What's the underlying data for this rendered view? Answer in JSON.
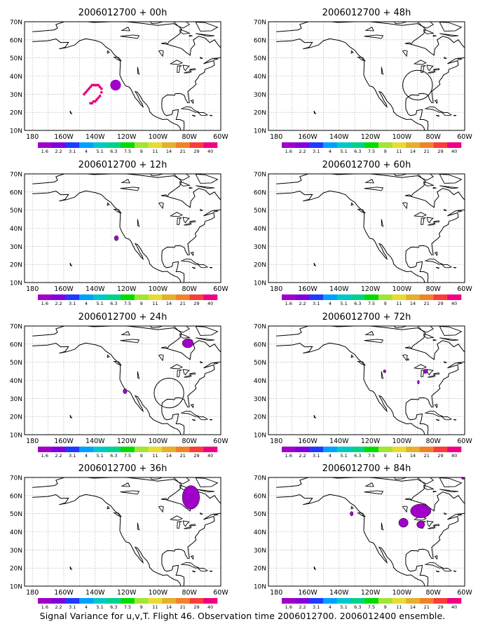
{
  "caption": "Signal Variance for u,v,T. Flight 46. Observation time 2006012700. 2006012400 ensemble.",
  "lon_labels": [
    "180",
    "160W",
    "140W",
    "120W",
    "100W",
    "80W",
    "60W"
  ],
  "lat_labels": [
    "10N",
    "20N",
    "30N",
    "40N",
    "50N",
    "60N",
    "70N"
  ],
  "colorbar": {
    "levels": [
      "1.6",
      "2.2",
      "3.1",
      "4",
      "5.1",
      "6.3",
      "7.5",
      "9",
      "11",
      "14",
      "21",
      "29",
      "40"
    ],
    "colors": [
      "#a000c8",
      "#8200dc",
      "#1e3cff",
      "#00a0ff",
      "#00c8c8",
      "#00d28c",
      "#00dc00",
      "#a0e632",
      "#e6dc32",
      "#e6af2d",
      "#f08228",
      "#fa3c3c",
      "#f00082"
    ]
  },
  "panels": [
    {
      "title": "2006012700 + 00h",
      "circle": false,
      "features": [
        {
          "kind": "dot",
          "lon": -127,
          "lat": 35,
          "r": 1.8,
          "color": "#a000c8"
        },
        {
          "kind": "dotarc",
          "color": "#e6007a",
          "points": [
            [
              -147,
              30
            ],
            [
              -146,
              31
            ],
            [
              -145,
              32
            ],
            [
              -144,
              33
            ],
            [
              -143,
              34
            ],
            [
              -142,
              35
            ],
            [
              -141,
              35
            ],
            [
              -140,
              35
            ],
            [
              -139,
              35
            ],
            [
              -138,
              35
            ],
            [
              -137,
              34
            ],
            [
              -136,
              33
            ],
            [
              -136,
              31
            ],
            [
              -137,
              29
            ],
            [
              -138,
              28
            ],
            [
              -139,
              27
            ],
            [
              -140,
              26
            ],
            [
              -141,
              26
            ],
            [
              -142,
              25
            ],
            [
              -143,
              25
            ]
          ]
        }
      ]
    },
    {
      "title": "2006012700 + 48h",
      "circle": true,
      "circle_center": [
        -90,
        35
      ],
      "circle_r": 9,
      "features": []
    },
    {
      "title": "2006012700 + 12h",
      "circle": false,
      "features": [
        {
          "kind": "blob",
          "lon": -126.5,
          "lat": 34.5,
          "rx": 1.3,
          "ry": 1.4,
          "color": "#a000c8"
        }
      ]
    },
    {
      "title": "2006012700 + 60h",
      "circle": false,
      "features": []
    },
    {
      "title": "2006012700 + 24h",
      "circle": true,
      "circle_center": [
        -93,
        33
      ],
      "circle_r": 9,
      "features": [
        {
          "kind": "blob",
          "lon": -121,
          "lat": 34,
          "rx": 1.2,
          "ry": 1.4,
          "color": "#a000c8"
        },
        {
          "kind": "blob",
          "lon": -81,
          "lat": 60.5,
          "rx": 3.5,
          "ry": 2.5,
          "color": "#a000c8"
        }
      ]
    },
    {
      "title": "2006012700 + 72h",
      "circle": false,
      "features": [
        {
          "kind": "blob",
          "lon": -111,
          "lat": 45,
          "rx": 0.8,
          "ry": 0.8,
          "color": "#a000c8"
        },
        {
          "kind": "blob",
          "lon": -85,
          "lat": 45,
          "rx": 1.3,
          "ry": 1.2,
          "color": "#a000c8"
        },
        {
          "kind": "blob",
          "lon": -89.5,
          "lat": 39,
          "rx": 0.6,
          "ry": 1.0,
          "color": "#a000c8"
        },
        {
          "kind": "blob",
          "lon": -96,
          "lat": 51.5,
          "rx": 0.5,
          "ry": 0.5,
          "color": "#a000c8"
        }
      ]
    },
    {
      "title": "2006012700 + 36h",
      "circle": false,
      "features": [
        {
          "kind": "blob",
          "lon": -79,
          "lat": 59,
          "rx": 5.5,
          "ry": 6.5,
          "color": "#a000c8"
        }
      ]
    },
    {
      "title": "2006012700 + 84h",
      "circle": false,
      "features": [
        {
          "kind": "blob",
          "lon": -88,
          "lat": 51.5,
          "rx": 6.5,
          "ry": 3.8,
          "color": "#a000c8"
        },
        {
          "kind": "blob",
          "lon": -99,
          "lat": 45,
          "rx": 3,
          "ry": 2.5,
          "color": "#a000c8"
        },
        {
          "kind": "blob",
          "lon": -88,
          "lat": 44,
          "rx": 2.5,
          "ry": 2,
          "color": "#a000c8"
        },
        {
          "kind": "blob",
          "lon": -132,
          "lat": 50,
          "rx": 1,
          "ry": 1.2,
          "color": "#a000c8"
        },
        {
          "kind": "blob",
          "lon": -61,
          "lat": 70,
          "rx": 1.2,
          "ry": 1,
          "color": "#a000c8"
        }
      ]
    }
  ]
}
